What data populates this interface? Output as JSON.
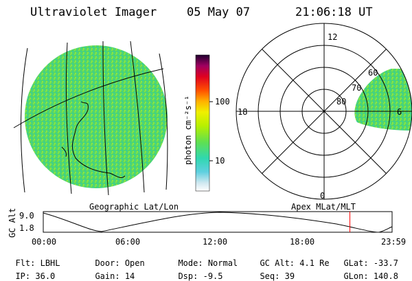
{
  "header": {
    "instrument": "Ultraviolet Imager",
    "date": "05 May 07",
    "time": "21:06:18 UT"
  },
  "left_panel": {
    "caption": "Geographic Lat/Lon"
  },
  "colorbar": {
    "unit_label": "photon cm⁻²s⁻¹",
    "ticks": [
      "100",
      "10"
    ],
    "scale": "log"
  },
  "polar_plot": {
    "caption": "Apex MLat/MLT",
    "mlt_labels": [
      "12",
      "18",
      "6",
      "0"
    ],
    "lat_labels": [
      "60",
      "70",
      "80"
    ]
  },
  "altitude_plot": {
    "ylabel": "GC Alt",
    "y_ticks": [
      "9.0",
      "1.8"
    ],
    "x_ticks": [
      "00:00",
      "06:00",
      "12:00",
      "18:00",
      "23:59"
    ],
    "current_time_fraction": 0.879,
    "marker_color": "#ff0000"
  },
  "info": {
    "row1": [
      {
        "label": "Flt:",
        "value": "LBHL"
      },
      {
        "label": "Door:",
        "value": "Open"
      },
      {
        "label": "Mode:",
        "value": "Normal"
      },
      {
        "label": "GC Alt:",
        "value": "4.1 Re"
      },
      {
        "label": "GLat:",
        "value": "-33.7"
      }
    ],
    "row2": [
      {
        "label": "IP:",
        "value": "36.0"
      },
      {
        "label": "Gain:",
        "value": "14"
      },
      {
        "label": "Dsp:",
        "value": "-9.5"
      },
      {
        "label": "Seq:",
        "value": "39"
      },
      {
        "label": "GLon:",
        "value": "140.8"
      }
    ]
  },
  "colors": {
    "image_fill": "#4fd86a",
    "image_fill_alt": "#7fe24a"
  }
}
